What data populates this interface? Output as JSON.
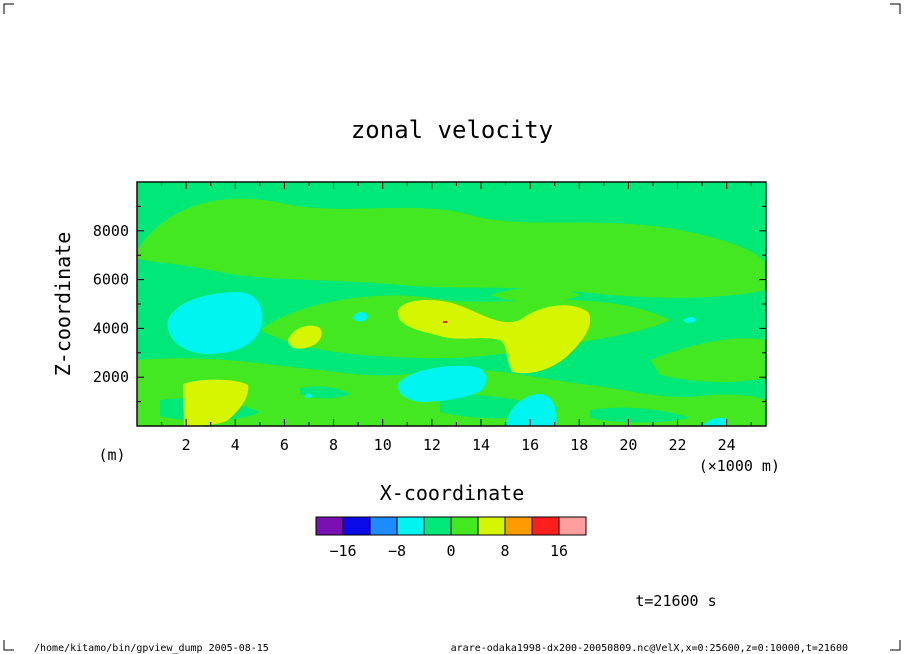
{
  "chart_data": {
    "type": "heatmap",
    "title": "zonal velocity",
    "xlabel": "X-coordinate",
    "ylabel": "Z-coordinate",
    "x_unit": "(×1000 m)",
    "y_unit": "(m)",
    "xlim": [
      0,
      25.6
    ],
    "ylim": [
      0,
      10000
    ],
    "x_ticks": [
      2,
      4,
      6,
      8,
      10,
      12,
      14,
      16,
      18,
      20,
      22,
      24
    ],
    "y_ticks": [
      2000,
      4000,
      6000,
      8000
    ],
    "colorbar": {
      "levels": [
        -20,
        -16,
        -12,
        -8,
        -4,
        0,
        4,
        8,
        12,
        16,
        20
      ],
      "colors": [
        "#7a10b4",
        "#0a0ae8",
        "#1e8cff",
        "#00f5f0",
        "#00e878",
        "#44e820",
        "#d6f500",
        "#ff9a00",
        "#ff1e1e",
        "#ff9e9e"
      ],
      "tick_labels": [
        "-16",
        "-8",
        "0",
        "8",
        "16"
      ],
      "tick_values": [
        -16,
        -8,
        0,
        8,
        16
      ]
    },
    "regions": [
      {
        "level": "-4 to 0",
        "color": "#00e878",
        "description": "background"
      },
      {
        "level": "0 to 4",
        "color": "#44e820",
        "description": "bands"
      },
      {
        "level": "4 to 8",
        "color": "#d6f500",
        "description": "positive cells"
      },
      {
        "level": "-8 to -4",
        "color": "#00f5f0",
        "description": "negative cells"
      }
    ]
  },
  "annotations": {
    "time": "t=21600 s",
    "footer_left": "/home/kitamo/bin/gpview_dump  2005-08-15",
    "footer_right": "arare-odaka1998-dx200-20050809.nc@VelX,x=0:25600,z=0:10000,t=21600"
  }
}
